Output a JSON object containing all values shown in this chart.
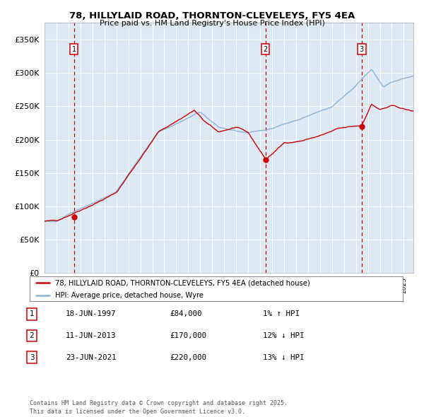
{
  "title1": "78, HILLYLAID ROAD, THORNTON-CLEVELEYS, FY5 4EA",
  "title2": "Price paid vs. HM Land Registry's House Price Index (HPI)",
  "ytick_vals": [
    0,
    50000,
    100000,
    150000,
    200000,
    250000,
    300000,
    350000
  ],
  "ylim": [
    0,
    375000
  ],
  "xlim_start": 1995.0,
  "xlim_end": 2025.8,
  "plot_bg": "#dce9f5",
  "fig_bg": "#ffffff",
  "grid_color": "#ffffff",
  "red_line_color": "#cc0000",
  "blue_line_color": "#8ab4d4",
  "sale1_date": 1997.46,
  "sale1_price": 84000,
  "sale2_date": 2013.44,
  "sale2_price": 170000,
  "sale3_date": 2021.48,
  "sale3_price": 220000,
  "legend_label_red": "78, HILLYLAID ROAD, THORNTON-CLEVELEYS, FY5 4EA (detached house)",
  "legend_label_blue": "HPI: Average price, detached house, Wyre",
  "table_rows": [
    {
      "num": "1",
      "date": "18-JUN-1997",
      "price": "£84,000",
      "pct": "1% ↑ HPI"
    },
    {
      "num": "2",
      "date": "11-JUN-2013",
      "price": "£170,000",
      "pct": "12% ↓ HPI"
    },
    {
      "num": "3",
      "date": "23-JUN-2021",
      "price": "£220,000",
      "pct": "13% ↓ HPI"
    }
  ],
  "footer": "Contains HM Land Registry data © Crown copyright and database right 2025.\nThis data is licensed under the Open Government Licence v3.0.",
  "dashed_line_color": "#cc0000"
}
